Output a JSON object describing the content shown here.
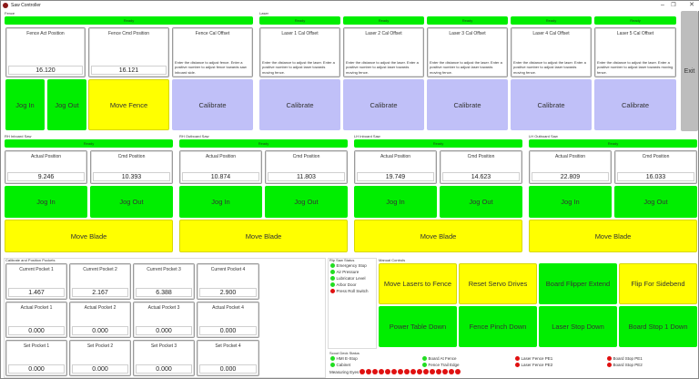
{
  "window": {
    "title": "Saw Controller",
    "controls": {
      "minimize": "–",
      "restore": "❐",
      "close": "✕"
    }
  },
  "fence": {
    "label": "Fence",
    "status": "Ready",
    "act_position": {
      "title": "Fence Act Position",
      "value": "16.120"
    },
    "cmd_position": {
      "title": "Fence Cmd Position",
      "value": "16.121"
    },
    "cal_offset": {
      "title": "Fence Cal Offset",
      "desc": "Enter the distance to adjust fence. Enter a positive number to adjust fence towards saw inboard side."
    },
    "jog_in": "Jog In",
    "jog_out": "Jog Out",
    "move": "Move Fence",
    "calibrate": "Calibrate"
  },
  "laser": {
    "label": "Laser",
    "units": [
      {
        "status": "Ready",
        "title": "Laser 1 Cal Offset",
        "desc": "Enter the distance to adjust the laser. Enter a positive number to adjust laser towards moving fence.",
        "button": "Calibrate"
      },
      {
        "status": "Ready",
        "title": "Laser 2 Cal Offset",
        "desc": "Enter the distance to adjust the laser. Enter a positive number to adjust laser towards moving fence.",
        "button": "Calibrate"
      },
      {
        "status": "Ready",
        "title": "Laser 3 Cal Offset",
        "desc": "Enter the distance to adjust the laser. Enter a positive number to adjust laser towards moving fence.",
        "button": "Calibrate"
      },
      {
        "status": "Ready",
        "title": "Laser 4 Cal Offset",
        "desc": "Enter the distance to adjust the laser. Enter a positive number to adjust laser towards moving fence.",
        "button": "Calibrate"
      },
      {
        "status": "Ready",
        "title": "Laser 5 Cal Offset",
        "desc": "Enter the distance to adjust the laser. Enter a positive number to adjust laser towards moving fence.",
        "button": "Calibrate"
      }
    ]
  },
  "exit_label": "Exit",
  "saws": [
    {
      "label": "RH Inboard Saw",
      "status": "Ready",
      "actual_title": "Actual Position",
      "actual": "9.246",
      "cmd_title": "Cmd Position",
      "cmd": "10.393",
      "jog_in": "Jog In",
      "jog_out": "Jog Out",
      "move": "Move Blade"
    },
    {
      "label": "RH Outboard Saw",
      "status": "Ready",
      "actual_title": "Actual Position",
      "actual": "10.874",
      "cmd_title": "Cmd Position",
      "cmd": "11.803",
      "jog_in": "Jog In",
      "jog_out": "Jog Out",
      "move": "Move Blade"
    },
    {
      "label": "LH Inboard Saw",
      "status": "Ready",
      "actual_title": "Actual Position",
      "actual": "19.749",
      "cmd_title": "Cmd Position",
      "cmd": "14.623",
      "jog_in": "Jog In",
      "jog_out": "Jog Out",
      "move": "Move Blade"
    },
    {
      "label": "LH Outboard Saw",
      "status": "Ready",
      "actual_title": "Actual Position",
      "actual": "22.809",
      "cmd_title": "Cmd Position",
      "cmd": "16.033",
      "jog_in": "Jog In",
      "jog_out": "Jog Out",
      "move": "Move Blade"
    }
  ],
  "pockets": {
    "label": "Calibrate and Position Pockets",
    "rows": [
      [
        {
          "title": "Current Pocket 1",
          "value": "1.467"
        },
        {
          "title": "Current Pocket 2",
          "value": "2.167"
        },
        {
          "title": "Current Pocket 3",
          "value": "6.388"
        },
        {
          "title": "Current Pocket 4",
          "value": "2.900"
        }
      ],
      [
        {
          "title": "Actual Pocket 1",
          "value": "0.000"
        },
        {
          "title": "Actual Pocket 2",
          "value": "0.000"
        },
        {
          "title": "Actual Pocket 3",
          "value": "0.000"
        },
        {
          "title": "Actual Pocket 4",
          "value": "0.000"
        }
      ],
      [
        {
          "title": "Set Pocket 1",
          "value": "0.000"
        },
        {
          "title": "Set Pocket 2",
          "value": "0.000"
        },
        {
          "title": "Set Pocket 3",
          "value": "0.000"
        },
        {
          "title": "Set Pocket 4",
          "value": "0.000"
        }
      ]
    ]
  },
  "rip_saw_status": {
    "label": "Rip Saw Status",
    "items": [
      {
        "label": "Emergency Stop",
        "state": "ok",
        "color": "#22dd22"
      },
      {
        "label": "Air Pressure",
        "state": "ok",
        "color": "#22dd22"
      },
      {
        "label": "Lubricator Level",
        "state": "ok",
        "color": "#22dd22"
      },
      {
        "label": "Arbor Door",
        "state": "ok",
        "color": "#22dd22"
      },
      {
        "label": "Press Roll Switch",
        "state": "fault",
        "color": "#e01010"
      }
    ]
  },
  "manual_controls": {
    "label": "Manual Controls",
    "buttons": [
      {
        "label": "Move Lasers to Fence",
        "color": "yellow"
      },
      {
        "label": "Reset Servo Drives",
        "color": "yellow"
      },
      {
        "label": "Board Flipper Extend",
        "color": "green"
      },
      {
        "label": "Flip For Sidebend",
        "color": "yellow"
      },
      {
        "label": "Power Table Down",
        "color": "green"
      },
      {
        "label": "Fence Pinch Down",
        "color": "green"
      },
      {
        "label": "Laser Stop Down",
        "color": "green"
      },
      {
        "label": "Board Stop 1 Down",
        "color": "green"
      }
    ]
  },
  "scout_deck_status": {
    "label": "Scout Deck Status",
    "items": [
      {
        "label": "HMI E-Stop",
        "state": "ok"
      },
      {
        "label": "Cabinet",
        "state": "ok"
      },
      {
        "label": "Board At Fence",
        "state": "ok"
      },
      {
        "label": "Fence Trail Edge",
        "state": "ok"
      },
      {
        "label": "Laser Fence PE1",
        "state": "fault"
      },
      {
        "label": "Laser Fence PE2",
        "state": "fault"
      },
      {
        "label": "Board Stop PE1",
        "state": "fault"
      },
      {
        "label": "Board Stop PE2",
        "state": "fault"
      }
    ],
    "measuring_eyes_label": "Measuring Eyes",
    "measuring_eyes_count": 16,
    "measuring_eyes_state": "fault"
  },
  "colors": {
    "ready_green": "#00ee00",
    "yellow": "#ffff00",
    "calibrate_lavender": "#c0c0f8",
    "exit_gray": "#bdbdbd",
    "led_green": "#22dd22",
    "led_red": "#e01010"
  }
}
